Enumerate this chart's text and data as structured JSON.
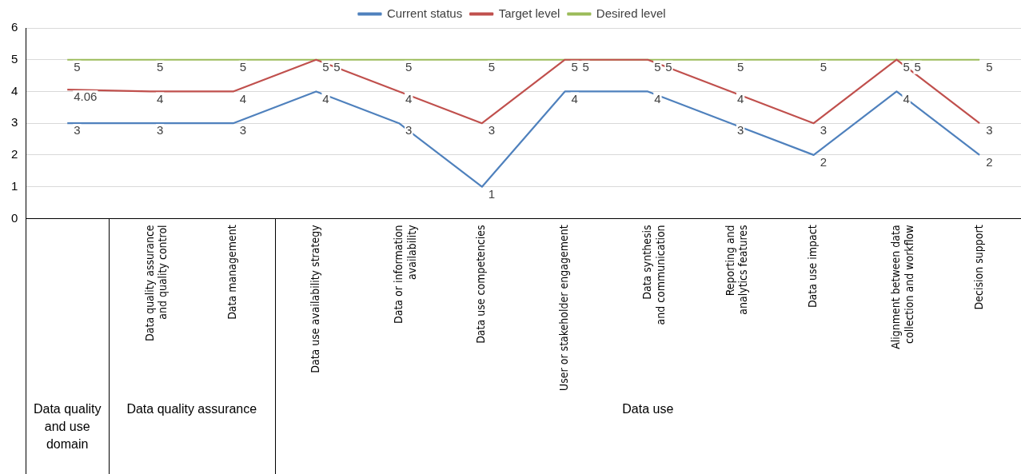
{
  "chart_data": {
    "type": "line",
    "categories": [
      null,
      "Data quality assurance and quality control",
      "Data management",
      "Data use availability strategy",
      "Data or information availability",
      "Data use competencies",
      "User or stakeholder engagement",
      "Data synthesis and communication",
      "Reporting and analytics features",
      "Data use impact",
      "Alignment between data collection and workflow",
      "Decision support"
    ],
    "series": [
      {
        "name": "Current status",
        "color": "#4f81bd",
        "values": [
          3,
          3,
          3,
          4,
          3,
          1,
          4,
          4,
          3,
          2,
          4,
          2
        ]
      },
      {
        "name": "Target level",
        "color": "#c0504d",
        "values": [
          4.06,
          4,
          4,
          5,
          4,
          3,
          5,
          5,
          4,
          3,
          5,
          3
        ]
      },
      {
        "name": "Desired level",
        "color": "#9bbb59",
        "values": [
          5,
          5,
          5,
          5,
          5,
          5,
          5,
          5,
          5,
          5,
          5,
          5
        ]
      }
    ],
    "annotations": [
      "Data quality and use domain",
      "Data quality assurance",
      "Data use"
    ],
    "ylim": [
      0,
      6
    ],
    "yticks": [
      0,
      1,
      2,
      3,
      4,
      5,
      6
    ],
    "grid": "y",
    "legend": "top",
    "marker": "none",
    "line_style": "solid",
    "data_labels": true
  }
}
